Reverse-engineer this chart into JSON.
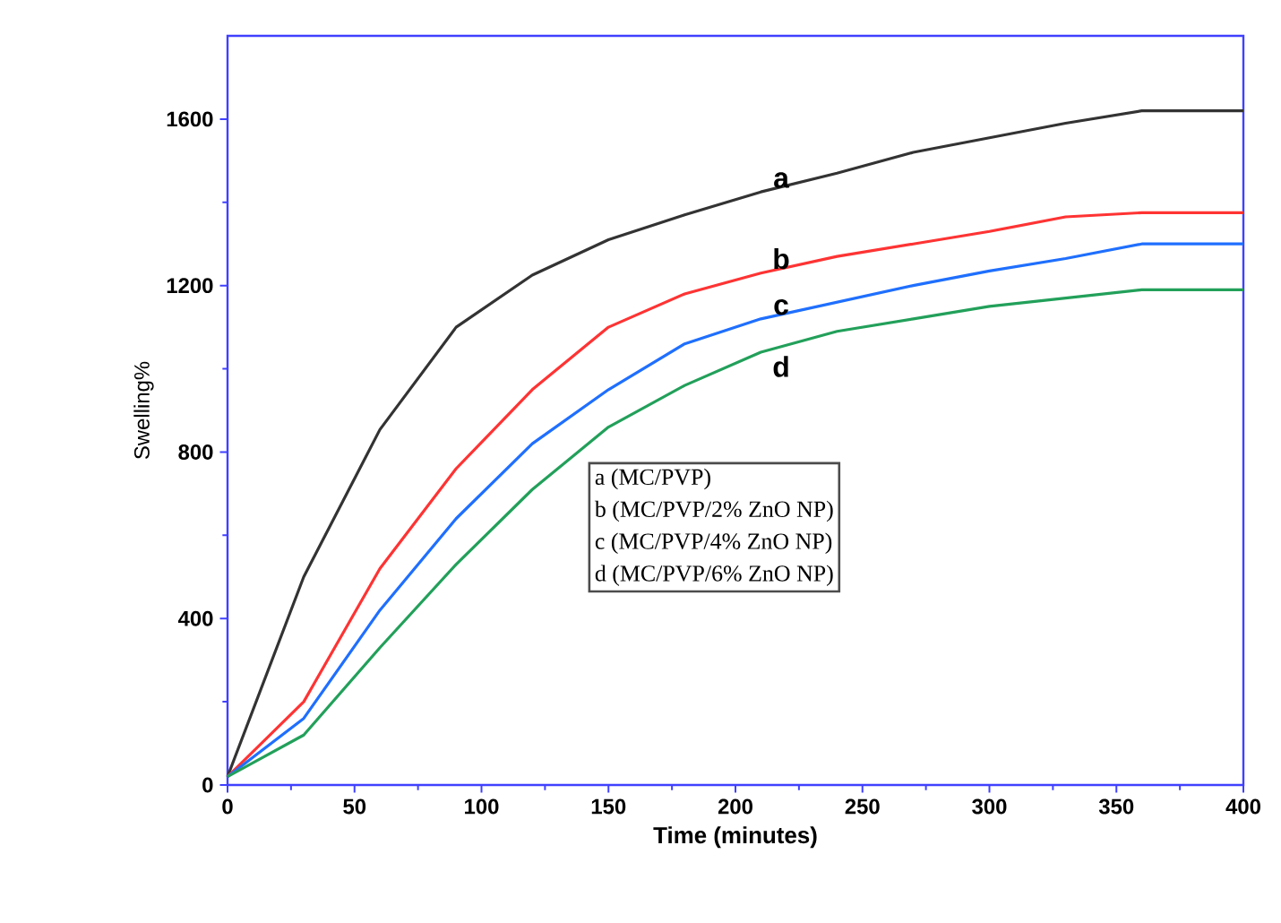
{
  "chart_data": {
    "type": "line",
    "xlabel": "Time (minutes)",
    "ylabel": "Swelling%",
    "x": [
      0,
      30,
      60,
      90,
      120,
      150,
      180,
      210,
      240,
      270,
      300,
      330,
      360,
      400
    ],
    "series": [
      {
        "name": "a",
        "color": "#333333",
        "values": [
          20,
          500,
          854,
          1100,
          1225,
          1310,
          1370,
          1425,
          1470,
          1520,
          1555,
          1590,
          1620,
          1620
        ]
      },
      {
        "name": "b",
        "color": "#ff3333",
        "values": [
          20,
          200,
          520,
          760,
          950,
          1100,
          1180,
          1230,
          1270,
          1300,
          1330,
          1365,
          1375,
          1375
        ]
      },
      {
        "name": "c",
        "color": "#1f6fff",
        "values": [
          20,
          160,
          420,
          640,
          820,
          950,
          1060,
          1120,
          1160,
          1200,
          1235,
          1265,
          1300,
          1300
        ]
      },
      {
        "name": "d",
        "color": "#22a05a",
        "values": [
          20,
          120,
          330,
          530,
          710,
          860,
          960,
          1040,
          1090,
          1120,
          1150,
          1170,
          1190,
          1190
        ]
      }
    ],
    "xlim": [
      0,
      400
    ],
    "xticks": [
      0,
      50,
      100,
      150,
      200,
      250,
      300,
      350,
      400
    ],
    "ylim": [
      0,
      1800
    ],
    "yticks": [
      0,
      400,
      800,
      1200,
      1600
    ],
    "annotations": [
      "a (MC/PVP)",
      "b (MC/PVP/2% ZnO NP)",
      "c (MC/PVP/4% ZnO NP)",
      "d (MC/PVP/6% ZnO NP)"
    ],
    "grid": false,
    "marker": "none",
    "line_style": "solid"
  }
}
